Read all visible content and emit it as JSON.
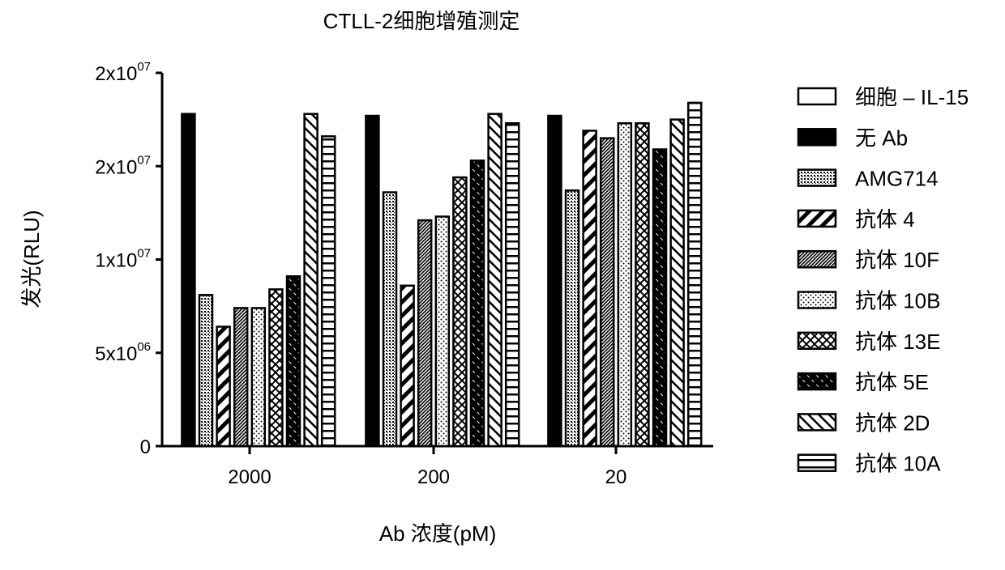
{
  "chart_data": {
    "type": "bar",
    "title": "CTLL-2细胞增殖测定",
    "xlabel": "Ab 浓度(pM)",
    "ylabel": "发光(RLU)",
    "ylim": [
      0,
      20000000
    ],
    "yticks": [
      {
        "value": 0,
        "label": "0"
      },
      {
        "value": 5000000,
        "label": "5x10",
        "exp": "06"
      },
      {
        "value": 10000000,
        "label": "1x10",
        "exp": "07"
      },
      {
        "value": 15000000,
        "label": "2x10",
        "exp": "07"
      },
      {
        "value": 20000000,
        "label": "2x10",
        "exp": "07"
      }
    ],
    "categories": [
      "2000",
      "200",
      "20"
    ],
    "legend_position": "right",
    "series": [
      {
        "name": "细胞 – IL-15",
        "pattern": "open",
        "values": [
          0,
          0,
          0
        ]
      },
      {
        "name": "无  Ab",
        "pattern": "solid",
        "values": [
          17800000,
          17700000,
          17700000
        ]
      },
      {
        "name": "AMG714",
        "pattern": "fine-grid",
        "values": [
          8100000,
          13600000,
          13700000
        ]
      },
      {
        "name": "抗体 4",
        "pattern": "wide-diagonal",
        "values": [
          6400000,
          8600000,
          16900000
        ]
      },
      {
        "name": "抗体 10F",
        "pattern": "dense-diagonal",
        "values": [
          7400000,
          12100000,
          16500000
        ]
      },
      {
        "name": "抗体 10B",
        "pattern": "dots",
        "values": [
          7400000,
          12300000,
          17300000
        ]
      },
      {
        "name": "抗体 13E",
        "pattern": "crosshatch",
        "values": [
          8400000,
          14400000,
          17300000
        ]
      },
      {
        "name": "抗体 5E",
        "pattern": "dark-diagonal",
        "values": [
          9100000,
          15300000,
          15900000
        ]
      },
      {
        "name": "抗体 2D",
        "pattern": "back-diagonal",
        "values": [
          17800000,
          17800000,
          17500000
        ]
      },
      {
        "name": "抗体 10A",
        "pattern": "horizontal",
        "values": [
          16600000,
          17300000,
          18400000
        ]
      }
    ]
  }
}
